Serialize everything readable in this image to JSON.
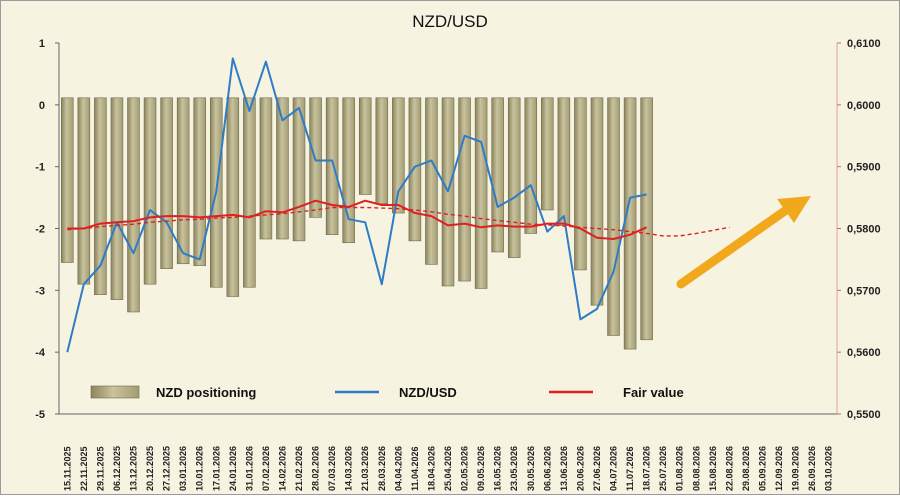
{
  "chart_data": {
    "type": "bar+line",
    "title": "NZD/USD",
    "x_labels": [
      "15.11.2025",
      "22.11.2025",
      "29.11.2025",
      "06.12.2025",
      "13.12.2025",
      "20.12.2025",
      "27.12.2025",
      "03.01.2026",
      "10.01.2026",
      "17.01.2026",
      "24.01.2026",
      "31.01.2026",
      "07.02.2026",
      "14.02.2026",
      "21.02.2026",
      "28.02.2026",
      "07.03.2026",
      "14.03.2026",
      "21.03.2026",
      "28.03.2026",
      "04.04.2026",
      "11.04.2026",
      "18.04.2026",
      "25.04.2026",
      "02.05.2026",
      "09.05.2026",
      "16.05.2026",
      "23.05.2026",
      "30.05.2026",
      "06.06.2026",
      "13.06.2026",
      "20.06.2026",
      "27.06.2026",
      "04.07.2026",
      "11.07.2026",
      "18.07.2026",
      "25.07.2026",
      "01.08.2026",
      "08.08.2026",
      "15.08.2026",
      "22.08.2026",
      "29.08.2026",
      "05.09.2026",
      "12.09.2026",
      "19.09.2026",
      "26.09.2026",
      "03.10.2026"
    ],
    "y_left": {
      "min": -5,
      "max": 1,
      "ticks": [
        1,
        0,
        -1,
        -2,
        -3,
        -4,
        -5
      ],
      "tick_labels": [
        "1",
        "0",
        "-1",
        "-2",
        "-3",
        "-4",
        "-5"
      ]
    },
    "y_right": {
      "min": 0.55,
      "max": 0.61,
      "ticks": [
        0.61,
        0.6,
        0.59,
        0.58,
        0.57,
        0.56,
        0.55
      ],
      "tick_labels": [
        "0,6100",
        "0,6000",
        "0,5900",
        "0,5800",
        "0,5700",
        "0,5600",
        "0,5500"
      ]
    },
    "grid": false,
    "legend_position": "bottom-inside",
    "series": [
      {
        "name": "NZD positioning",
        "kind": "bar",
        "axis": "left",
        "color": "#b5ae85",
        "values": [
          -2.55,
          -2.9,
          -3.07,
          -3.15,
          -3.35,
          -2.9,
          -2.65,
          -2.57,
          -2.6,
          -2.95,
          -3.1,
          -2.95,
          -2.17,
          -2.17,
          -2.2,
          -1.82,
          -2.1,
          -2.23,
          -1.45,
          -1.6,
          -1.75,
          -2.2,
          -2.58,
          -2.93,
          -2.85,
          -2.97,
          -2.38,
          -2.47,
          -2.08,
          -1.7,
          -1.95,
          -2.67,
          -3.24,
          -3.73,
          -3.95,
          -3.8
        ]
      },
      {
        "name": "NZD/USD",
        "kind": "line",
        "axis": "right",
        "color": "#2e7cc6",
        "values": [
          0.56,
          0.571,
          0.574,
          0.581,
          0.576,
          0.583,
          0.581,
          0.576,
          0.575,
          0.586,
          0.6075,
          0.599,
          0.607,
          0.5975,
          0.5995,
          0.591,
          0.591,
          0.5815,
          0.581,
          0.571,
          0.586,
          0.59,
          0.591,
          0.586,
          0.595,
          0.594,
          0.5835,
          0.585,
          0.587,
          0.5795,
          0.582,
          0.5653,
          0.567,
          0.573,
          0.585,
          0.5855
        ]
      },
      {
        "name": "Fair value",
        "kind": "line",
        "axis": "left",
        "color": "#e02020",
        "values": [
          -2.0,
          -2.0,
          -1.92,
          -1.9,
          -1.88,
          -1.82,
          -1.8,
          -1.8,
          -1.82,
          -1.8,
          -1.78,
          -1.82,
          -1.72,
          -1.74,
          -1.65,
          -1.55,
          -1.62,
          -1.65,
          -1.55,
          -1.62,
          -1.62,
          -1.75,
          -1.8,
          -1.95,
          -1.92,
          -1.98,
          -1.95,
          -1.97,
          -1.97,
          -1.92,
          -1.92,
          -2.0,
          -2.15,
          -2.17,
          -2.1,
          -1.98
        ]
      },
      {
        "name": "Fair value trend",
        "kind": "dashed-line",
        "axis": "left",
        "color": "#e02020",
        "values": [
          -2.02,
          -2.0,
          -1.97,
          -1.95,
          -1.93,
          -1.9,
          -1.88,
          -1.86,
          -1.85,
          -1.83,
          -1.82,
          -1.8,
          -1.78,
          -1.76,
          -1.73,
          -1.7,
          -1.66,
          -1.66,
          -1.66,
          -1.67,
          -1.68,
          -1.7,
          -1.73,
          -1.77,
          -1.8,
          -1.84,
          -1.87,
          -1.9,
          -1.93,
          -1.94,
          -1.96,
          -1.98,
          -2.0,
          -2.02,
          -2.05,
          -2.08,
          -2.12,
          -2.12,
          -2.08,
          -2.03,
          -1.98
        ]
      }
    ],
    "legend": [
      {
        "label": "NZD positioning"
      },
      {
        "label": "NZD/USD"
      },
      {
        "label": "Fair value"
      }
    ],
    "annotation": {
      "type": "arrow",
      "direction": "up-right",
      "color": "#f2a81d"
    }
  }
}
